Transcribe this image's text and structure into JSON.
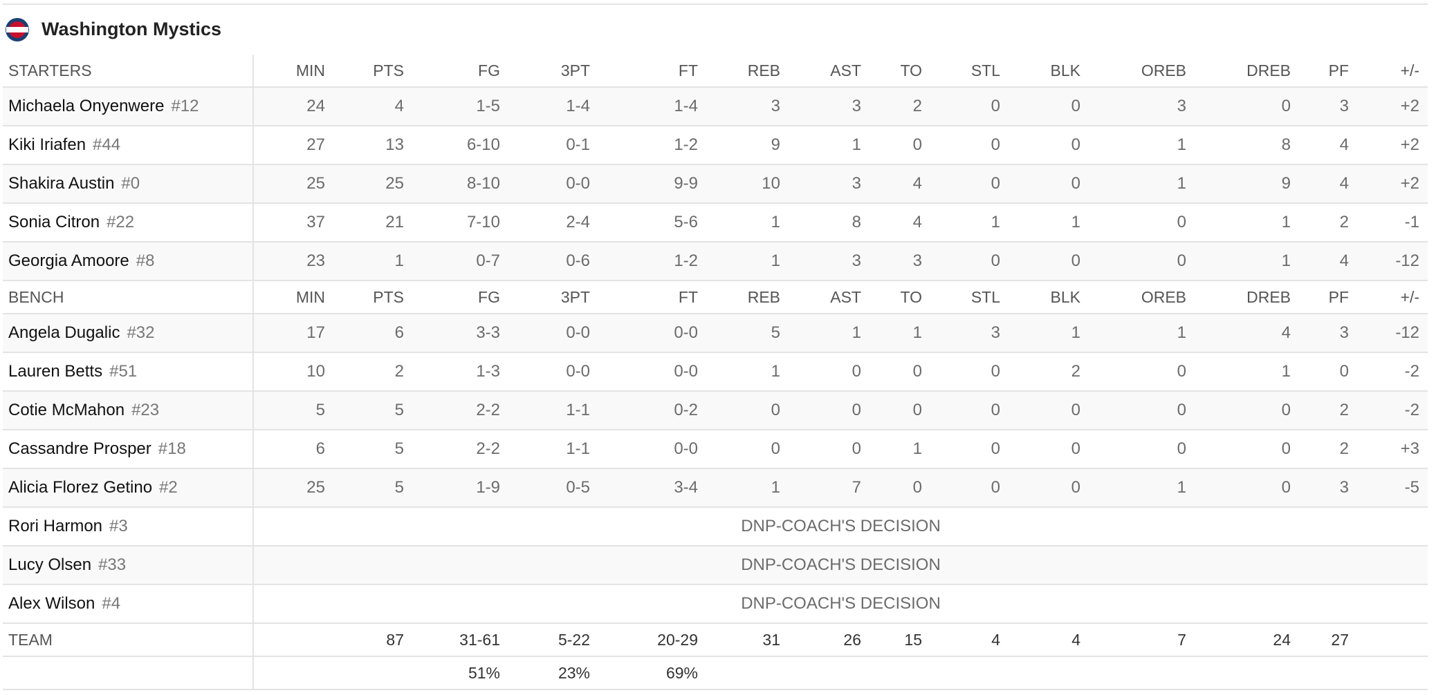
{
  "header": {
    "team": "Washington Mystics"
  },
  "columns": [
    "MIN",
    "PTS",
    "FG",
    "3PT",
    "FT",
    "REB",
    "AST",
    "TO",
    "STL",
    "BLK",
    "OREB",
    "DREB",
    "PF",
    "+/-"
  ],
  "sections": [
    {
      "label": "STARTERS",
      "players": [
        {
          "name": "Michaela Onyenwere",
          "number": "#12",
          "stats": [
            24,
            4,
            "1-5",
            "1-4",
            "1-4",
            3,
            3,
            2,
            0,
            0,
            3,
            0,
            3,
            "+2"
          ]
        },
        {
          "name": "Kiki Iriafen",
          "number": "#44",
          "stats": [
            27,
            13,
            "6-10",
            "0-1",
            "1-2",
            9,
            1,
            0,
            0,
            0,
            1,
            8,
            4,
            "+2"
          ]
        },
        {
          "name": "Shakira Austin",
          "number": "#0",
          "stats": [
            25,
            25,
            "8-10",
            "0-0",
            "9-9",
            10,
            3,
            4,
            0,
            0,
            1,
            9,
            4,
            "+2"
          ]
        },
        {
          "name": "Sonia Citron",
          "number": "#22",
          "stats": [
            37,
            21,
            "7-10",
            "2-4",
            "5-6",
            1,
            8,
            4,
            1,
            1,
            0,
            1,
            2,
            "-1"
          ]
        },
        {
          "name": "Georgia Amoore",
          "number": "#8",
          "stats": [
            23,
            1,
            "0-7",
            "0-6",
            "1-2",
            1,
            3,
            3,
            0,
            0,
            0,
            1,
            4,
            "-12"
          ]
        }
      ]
    },
    {
      "label": "BENCH",
      "players": [
        {
          "name": "Angela Dugalic",
          "number": "#32",
          "stats": [
            17,
            6,
            "3-3",
            "0-0",
            "0-0",
            5,
            1,
            1,
            3,
            1,
            1,
            4,
            3,
            "-12"
          ]
        },
        {
          "name": "Lauren Betts",
          "number": "#51",
          "stats": [
            10,
            2,
            "1-3",
            "0-0",
            "0-0",
            1,
            0,
            0,
            0,
            2,
            0,
            1,
            0,
            "-2"
          ]
        },
        {
          "name": "Cotie McMahon",
          "number": "#23",
          "stats": [
            5,
            5,
            "2-2",
            "1-1",
            "0-2",
            0,
            0,
            0,
            0,
            0,
            0,
            0,
            2,
            "-2"
          ]
        },
        {
          "name": "Cassandre Prosper",
          "number": "#18",
          "stats": [
            6,
            5,
            "2-2",
            "1-1",
            "0-0",
            0,
            0,
            1,
            0,
            0,
            0,
            0,
            2,
            "+3"
          ]
        },
        {
          "name": "Alicia Florez Getino",
          "number": "#2",
          "stats": [
            25,
            5,
            "1-9",
            "0-5",
            "3-4",
            1,
            7,
            0,
            0,
            0,
            1,
            0,
            3,
            "-5"
          ]
        },
        {
          "name": "Rori Harmon",
          "number": "#3",
          "dnp": "DNP-COACH'S DECISION"
        },
        {
          "name": "Lucy Olsen",
          "number": "#33",
          "dnp": "DNP-COACH'S DECISION"
        },
        {
          "name": "Alex Wilson",
          "number": "#4",
          "dnp": "DNP-COACH'S DECISION"
        }
      ]
    }
  ],
  "totals": {
    "label": "TEAM",
    "stats": [
      null,
      87,
      "31-61",
      "5-22",
      "20-29",
      31,
      26,
      15,
      4,
      4,
      7,
      24,
      27,
      null
    ],
    "percentages": [
      null,
      null,
      "51%",
      "23%",
      "69%",
      null,
      null,
      null,
      null,
      null,
      null,
      null,
      null,
      null
    ]
  }
}
